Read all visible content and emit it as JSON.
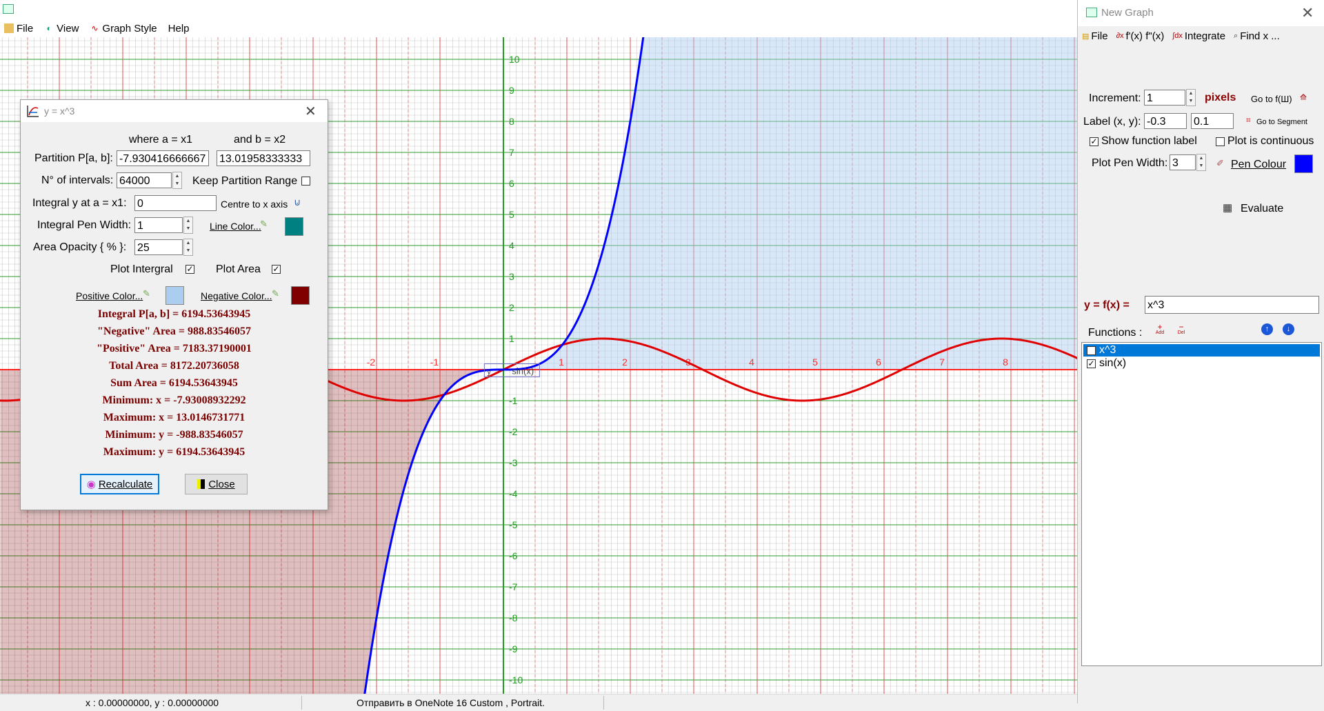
{
  "app": {
    "menu": [
      {
        "label": "File",
        "icon": "file-icon"
      },
      {
        "label": "View",
        "icon": "view-icon"
      },
      {
        "label": "Graph Style",
        "icon": "graph-style-icon"
      },
      {
        "label": "Help",
        "icon": ""
      }
    ]
  },
  "graph": {
    "x_ticks": [
      "-2",
      "-1",
      "1",
      "2",
      "3",
      "4",
      "5",
      "6",
      "7",
      "8"
    ],
    "y_ticks": [
      "10",
      "9",
      "8",
      "7",
      "6",
      "5",
      "4",
      "3",
      "2",
      "1",
      "-1",
      "-2",
      "-3",
      "-4",
      "-5",
      "-6",
      "-7",
      "-8",
      "-9",
      "-10"
    ],
    "function_label": "sin(x)",
    "small_label": "y",
    "curve_colors": {
      "x3": "#0000ff",
      "sin": "#e00000"
    },
    "positive_area_color": "#abcdef",
    "negative_area_color": "#800000"
  },
  "status": {
    "coords": "x : 0.00000000, y : 0.00000000",
    "printer": "Отправить в OneNote 16  Custom , Portrait."
  },
  "dialog": {
    "title": "y = x^3",
    "where_a": "where  a = x1",
    "and_b": "and  b = x2",
    "partition_label": "Partition P[a, b]:",
    "partition_a": "-7.930416666667",
    "partition_b": "13.01958333333",
    "intervals_label": "N° of intervals:",
    "intervals_value": "64000",
    "keep_range_label": "Keep Partition Range",
    "integral_y_label": "Integral y at a = x1:",
    "integral_y_value": "0",
    "centre_label": "Centre to x axis",
    "pen_width_label": "Integral Pen Width:",
    "pen_width_value": "1",
    "line_color_label": "Line Color...",
    "line_color": "#008080",
    "opacity_label": "Area Opacity { % }:",
    "opacity_value": "25",
    "plot_integral_label": "Plot Intergral",
    "plot_area_label": "Plot Area",
    "positive_color_label": "Positive Color...",
    "positive_color": "#abcdef",
    "negative_color_label": "Negative Color...",
    "negative_color": "#800000",
    "results": [
      "Integral P[a, b] = 6194.53643945",
      "\"Negative\" Area = 988.83546057",
      "\"Positive\" Area = 7183.37190001",
      "Total Area = 8172.20736058",
      "Sum Area = 6194.53643945",
      "Minimum: x = -7.93008932292",
      "Maximum: x = 13.0146731771",
      "Minimum: y = -988.83546057",
      "Maximum: y = 6194.53643945"
    ],
    "recalculate_label": "Recalculate",
    "close_label": "Close"
  },
  "panel": {
    "title": "New Graph",
    "toolbar": [
      "File",
      "f'(x) f\"(x)",
      "Integrate",
      "Find x ..."
    ],
    "increment_label": "Increment:",
    "increment_value": "1",
    "pixels_label": "pixels",
    "goto_f_label": "Go to f(Ш)",
    "label_xy_label": "Label (x, y):",
    "label_x_value": "-0.3",
    "label_y_value": "0.1",
    "goto_segment_label": "Go to Segment",
    "show_label": "Show function label",
    "continuous_label": "Plot is continuous",
    "pen_width_label": "Plot Pen Width:",
    "pen_width_value": "3",
    "pen_colour_label": "Pen Colour",
    "pen_colour": "#0000ff",
    "evaluate_label": "Evaluate",
    "fx_label": "y = f(x) =",
    "fx_value": "x^3",
    "functions_label": "Functions :",
    "add_label": "Add",
    "del_label": "Del",
    "functions": [
      "x^3",
      "sin(x)"
    ]
  }
}
